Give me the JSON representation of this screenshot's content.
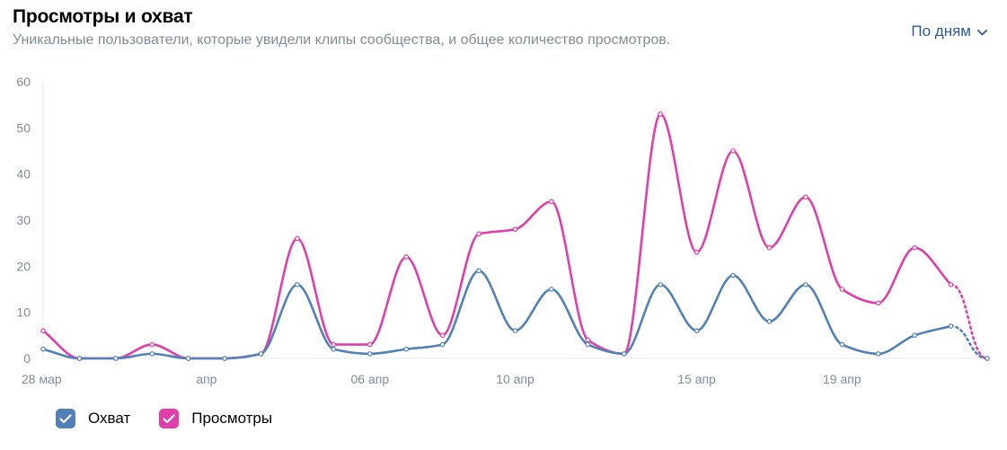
{
  "header": {
    "title": "Просмотры и охват",
    "subtitle": "Уникальные пользователи, которые увидели клипы сообщества, и общее количество просмотров.",
    "period_label": "По дням"
  },
  "legend": {
    "items": [
      {
        "label": "Охват",
        "color": "#5181b8"
      },
      {
        "label": "Просмотры",
        "color": "#e03fab"
      }
    ]
  },
  "chart_data": {
    "type": "line",
    "title": "Просмотры и охват",
    "ylim": [
      0,
      60
    ],
    "y_ticks": [
      0,
      10,
      20,
      30,
      40,
      50,
      60
    ],
    "x_tick_labels": [
      {
        "label": "28 мар",
        "index": 0
      },
      {
        "label": "апр",
        "index": 4.5
      },
      {
        "label": "06 апр",
        "index": 9
      },
      {
        "label": "10 апр",
        "index": 13
      },
      {
        "label": "15 апр",
        "index": 18
      },
      {
        "label": "19 апр",
        "index": 22
      }
    ],
    "dashed_last_segment": true,
    "series": [
      {
        "name": "Охват",
        "color": "#5181b8",
        "values": [
          2,
          0,
          0,
          1,
          0,
          0,
          1,
          16,
          2,
          1,
          2,
          3,
          19,
          6,
          15,
          3,
          1,
          16,
          6,
          18,
          8,
          16,
          3,
          1,
          5,
          7,
          0
        ]
      },
      {
        "name": "Просмотры",
        "color": "#e03fab",
        "values": [
          6,
          0,
          0,
          3,
          0,
          0,
          1,
          26,
          3,
          3,
          22,
          5,
          27,
          28,
          34,
          4,
          1,
          53,
          23,
          45,
          24,
          35,
          15,
          12,
          24,
          16,
          0
        ]
      }
    ]
  }
}
